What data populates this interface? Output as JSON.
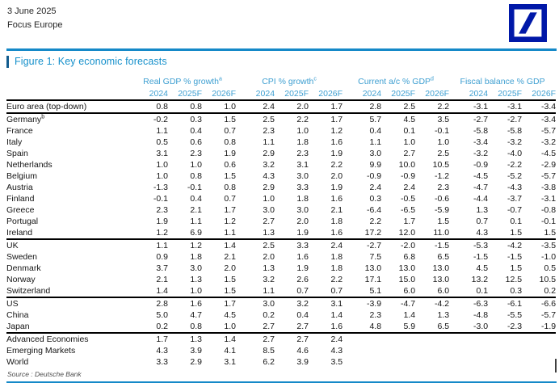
{
  "page": {
    "date": "3 June 2025",
    "publication": "Focus Europe",
    "logo": "deutsche-bank-slash-logo"
  },
  "figure": {
    "title": "Figure 1: Key economic forecasts",
    "source": "Source : Deutsche Bank"
  },
  "colors": {
    "rule_blue": "#1589C8",
    "title_blue": "#1590CB",
    "header_blue": "#3E9FD1",
    "logo_blue": "#0018A8",
    "section_rule_black": "#000000"
  },
  "table": {
    "groups": [
      {
        "label": "Real GDP % growth",
        "sup": "a"
      },
      {
        "label": "CPI % growth",
        "sup": "c"
      },
      {
        "label": "Current a/c % GDP",
        "sup": "d"
      },
      {
        "label": "Fiscal balance % GDP",
        "sup": ""
      }
    ],
    "year_headers": [
      "2024",
      "2025F",
      "2026F"
    ],
    "rows": [
      {
        "name": "Euro area (top-down)",
        "sup": "",
        "rule_below": true,
        "values": [
          "0.8",
          "0.8",
          "1.0",
          "2.4",
          "2.0",
          "1.7",
          "2.8",
          "2.5",
          "2.2",
          "-3.1",
          "-3.1",
          "-3.4"
        ]
      },
      {
        "name": "Germany",
        "sup": "b",
        "rule_below": false,
        "values": [
          "-0.2",
          "0.3",
          "1.5",
          "2.5",
          "2.2",
          "1.7",
          "5.7",
          "4.5",
          "3.5",
          "-2.7",
          "-2.7",
          "-3.4"
        ]
      },
      {
        "name": "France",
        "sup": "",
        "rule_below": false,
        "values": [
          "1.1",
          "0.4",
          "0.7",
          "2.3",
          "1.0",
          "1.2",
          "0.4",
          "0.1",
          "-0.1",
          "-5.8",
          "-5.8",
          "-5.7"
        ]
      },
      {
        "name": "Italy",
        "sup": "",
        "rule_below": false,
        "values": [
          "0.5",
          "0.6",
          "0.8",
          "1.1",
          "1.8",
          "1.6",
          "1.1",
          "1.0",
          "1.0",
          "-3.4",
          "-3.2",
          "-3.2"
        ]
      },
      {
        "name": "Spain",
        "sup": "",
        "rule_below": false,
        "values": [
          "3.1",
          "2.3",
          "1.9",
          "2.9",
          "2.3",
          "1.9",
          "3.0",
          "2.7",
          "2.5",
          "-3.2",
          "-4.0",
          "-4.5"
        ]
      },
      {
        "name": "Netherlands",
        "sup": "",
        "rule_below": false,
        "values": [
          "1.0",
          "1.0",
          "0.6",
          "3.2",
          "3.1",
          "2.2",
          "9.9",
          "10.0",
          "10.5",
          "-0.9",
          "-2.2",
          "-2.9"
        ]
      },
      {
        "name": "Belgium",
        "sup": "",
        "rule_below": false,
        "values": [
          "1.0",
          "0.8",
          "1.5",
          "4.3",
          "3.0",
          "2.0",
          "-0.9",
          "-0.9",
          "-1.2",
          "-4.5",
          "-5.2",
          "-5.7"
        ]
      },
      {
        "name": "Austria",
        "sup": "",
        "rule_below": false,
        "values": [
          "-1.3",
          "-0.1",
          "0.8",
          "2.9",
          "3.3",
          "1.9",
          "2.4",
          "2.4",
          "2.3",
          "-4.7",
          "-4.3",
          "-3.8"
        ]
      },
      {
        "name": "Finland",
        "sup": "",
        "rule_below": false,
        "values": [
          "-0.1",
          "0.4",
          "0.7",
          "1.0",
          "1.8",
          "1.6",
          "0.3",
          "-0.5",
          "-0.6",
          "-4.4",
          "-3.7",
          "-3.1"
        ]
      },
      {
        "name": "Greece",
        "sup": "",
        "rule_below": false,
        "values": [
          "2.3",
          "2.1",
          "1.7",
          "3.0",
          "3.0",
          "2.1",
          "-6.4",
          "-6.5",
          "-5.9",
          "1.3",
          "-0.7",
          "-0.8"
        ]
      },
      {
        "name": "Portugal",
        "sup": "",
        "rule_below": false,
        "values": [
          "1.9",
          "1.1",
          "1.2",
          "2.7",
          "2.0",
          "1.8",
          "2.2",
          "1.7",
          "1.5",
          "0.7",
          "0.1",
          "-0.1"
        ]
      },
      {
        "name": "Ireland",
        "sup": "",
        "rule_below": true,
        "values": [
          "1.2",
          "6.9",
          "1.1",
          "1.3",
          "1.9",
          "1.6",
          "17.2",
          "12.0",
          "11.0",
          "4.3",
          "1.5",
          "1.5"
        ]
      },
      {
        "name": "UK",
        "sup": "",
        "rule_below": false,
        "values": [
          "1.1",
          "1.2",
          "1.4",
          "2.5",
          "3.3",
          "2.4",
          "-2.7",
          "-2.0",
          "-1.5",
          "-5.3",
          "-4.2",
          "-3.5"
        ]
      },
      {
        "name": "Sweden",
        "sup": "",
        "rule_below": false,
        "values": [
          "0.9",
          "1.8",
          "2.1",
          "2.0",
          "1.6",
          "1.8",
          "7.5",
          "6.8",
          "6.5",
          "-1.5",
          "-1.5",
          "-1.0"
        ]
      },
      {
        "name": "Denmark",
        "sup": "",
        "rule_below": false,
        "values": [
          "3.7",
          "3.0",
          "2.0",
          "1.3",
          "1.9",
          "1.8",
          "13.0",
          "13.0",
          "13.0",
          "4.5",
          "1.5",
          "0.5"
        ]
      },
      {
        "name": "Norway",
        "sup": "",
        "rule_below": false,
        "values": [
          "2.1",
          "1.3",
          "1.5",
          "3.2",
          "2.6",
          "2.2",
          "17.1",
          "15.0",
          "13.0",
          "13.2",
          "12.5",
          "10.5"
        ]
      },
      {
        "name": "Switzerland",
        "sup": "",
        "rule_below": true,
        "values": [
          "1.4",
          "1.0",
          "1.5",
          "1.1",
          "0.7",
          "0.7",
          "5.1",
          "6.0",
          "6.0",
          "0.1",
          "0.3",
          "0.2"
        ]
      },
      {
        "name": "US",
        "sup": "",
        "rule_below": false,
        "values": [
          "2.8",
          "1.6",
          "1.7",
          "3.0",
          "3.2",
          "3.1",
          "-3.9",
          "-4.7",
          "-4.2",
          "-6.3",
          "-6.1",
          "-6.6"
        ]
      },
      {
        "name": "China",
        "sup": "",
        "rule_below": false,
        "values": [
          "5.0",
          "4.7",
          "4.5",
          "0.2",
          "0.4",
          "1.4",
          "2.3",
          "1.4",
          "1.3",
          "-4.8",
          "-5.5",
          "-5.7"
        ]
      },
      {
        "name": "Japan",
        "sup": "",
        "rule_below": true,
        "values": [
          "0.2",
          "0.8",
          "1.0",
          "2.7",
          "2.7",
          "1.6",
          "4.8",
          "5.9",
          "6.5",
          "-3.0",
          "-2.3",
          "-1.9"
        ]
      },
      {
        "name": "Advanced Economies",
        "sup": "",
        "rule_below": false,
        "values": [
          "1.7",
          "1.3",
          "1.4",
          "2.7",
          "2.7",
          "2.4",
          "",
          "",
          "",
          "",
          "",
          ""
        ]
      },
      {
        "name": "Emerging Markets",
        "sup": "",
        "rule_below": false,
        "values": [
          "4.3",
          "3.9",
          "4.1",
          "8.5",
          "4.6",
          "4.3",
          "",
          "",
          "",
          "",
          "",
          ""
        ]
      },
      {
        "name": "World",
        "sup": "",
        "rule_below": false,
        "values": [
          "3.3",
          "2.9",
          "3.1",
          "6.2",
          "3.9",
          "3.5",
          "",
          "",
          "",
          "",
          "",
          ""
        ]
      }
    ]
  }
}
